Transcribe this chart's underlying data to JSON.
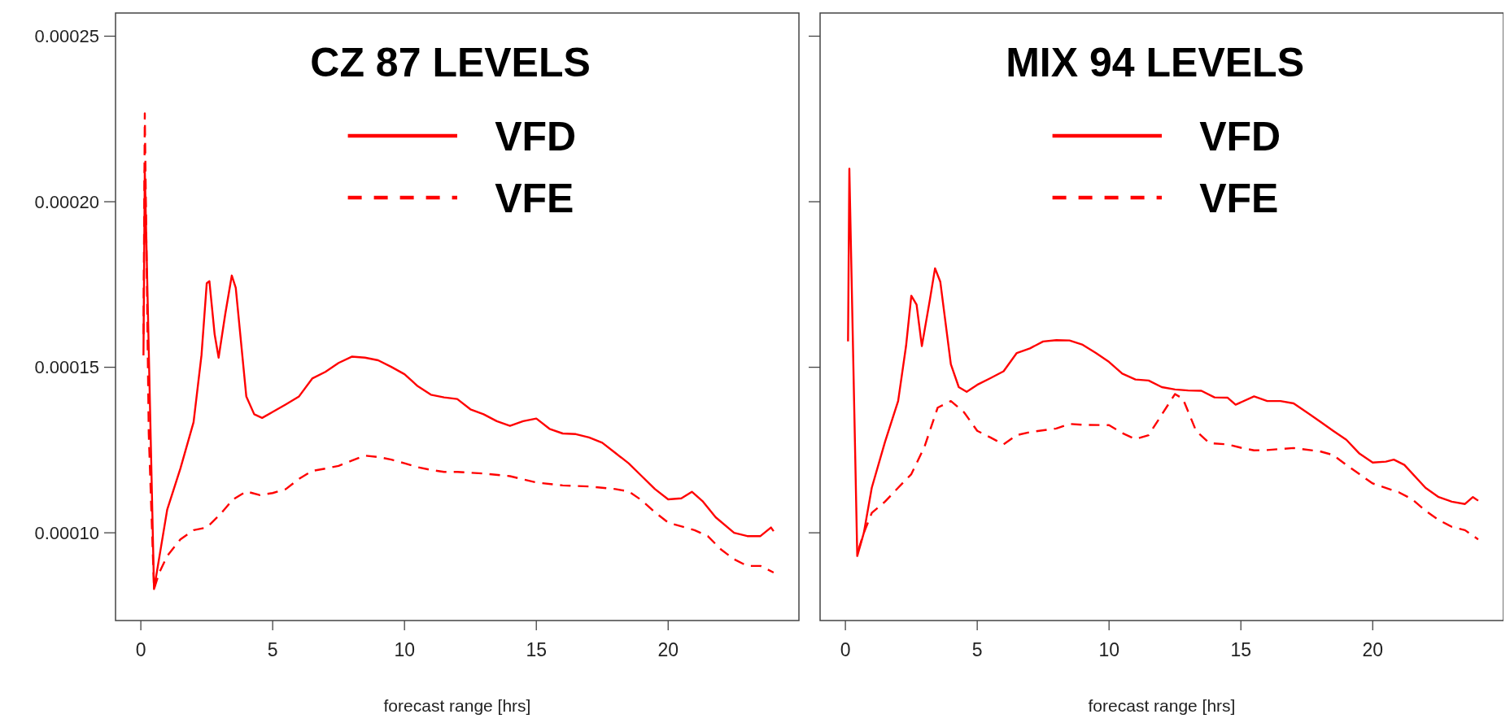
{
  "chart_data": [
    {
      "type": "line",
      "legend_title": "CZ 87 LEVELS",
      "xlabel": "forecast range [hrs]",
      "legend": "top",
      "xlim": [
        -0.96,
        24.96
      ],
      "ylim": [
        7.35e-05,
        0.000257
      ],
      "xticks": [
        0,
        5,
        10,
        15,
        20
      ],
      "yticks": [
        {
          "value": 0.0001,
          "label": "0.00010"
        },
        {
          "value": 0.00015,
          "label": "0.00015"
        },
        {
          "value": 0.0002,
          "label": "0.00020"
        },
        {
          "value": 0.00025,
          "label": "0.00025"
        }
      ],
      "series": [
        {
          "name": "VFD",
          "color": "#ff0000",
          "line_style": "solid",
          "x": [
            0.1,
            0.15,
            0.5,
            1,
            1.5,
            2,
            2.3,
            2.5,
            2.6,
            2.8,
            2.95,
            3.2,
            3.45,
            3.6,
            4,
            4.3,
            4.6,
            5,
            5.5,
            6,
            6.5,
            7,
            7.5,
            8,
            8.5,
            9,
            9.5,
            10,
            10.5,
            11,
            11.5,
            12,
            12.5,
            13,
            13.5,
            14,
            14.5,
            15,
            15.5,
            16,
            16.5,
            17,
            17.5,
            18,
            18.5,
            19,
            19.5,
            20,
            20.5,
            20.9,
            21.3,
            21.8,
            22.5,
            23,
            23.5,
            23.9,
            24
          ],
          "values": [
            0.0001536,
            0.0002096,
            8.3e-05,
            0.000107,
            0.0001194,
            0.0001334,
            0.0001536,
            0.0001754,
            0.000176,
            0.0001599,
            0.0001529,
            0.000166,
            0.0001777,
            0.000174,
            0.0001412,
            0.0001358,
            0.0001347,
            0.0001365,
            0.0001388,
            0.0001412,
            0.0001466,
            0.0001486,
            0.0001513,
            0.0001532,
            0.0001529,
            0.0001521,
            0.0001501,
            0.0001479,
            0.0001443,
            0.0001417,
            0.0001409,
            0.0001404,
            0.0001373,
            0.0001358,
            0.0001337,
            0.0001323,
            0.0001337,
            0.0001345,
            0.0001314,
            0.00013,
            0.0001298,
            0.0001288,
            0.0001272,
            0.0001241,
            0.000121,
            0.0001171,
            0.0001132,
            0.0001101,
            0.0001104,
            0.0001124,
            0.0001096,
            0.0001047,
            0.0001,
            9.9e-05,
            9.9e-05,
            0.0001016,
            0.0001005
          ]
        },
        {
          "name": "VFE",
          "color": "#ff0000",
          "line_style": "dashed",
          "x": [
            0.1,
            0.15,
            0.3,
            0.5,
            0.7,
            1,
            1.5,
            2,
            2.5,
            3,
            3.5,
            4,
            4.5,
            5,
            5.5,
            6,
            6.5,
            7,
            7.5,
            8,
            8.5,
            9,
            9.5,
            10,
            10.5,
            11,
            11.5,
            12,
            13,
            14,
            15,
            16,
            17,
            18,
            18.5,
            19,
            19.5,
            20,
            21,
            21.5,
            22,
            22.5,
            23,
            23.5,
            24
          ],
          "values": [
            0.00016,
            0.0002267,
            0.00013,
            8.3e-05,
            8.8e-05,
            9.3e-05,
            9.8e-05,
            0.0001008,
            0.0001016,
            0.0001055,
            0.0001101,
            0.0001125,
            0.0001114,
            0.000112,
            0.0001132,
            0.0001163,
            0.0001187,
            0.0001194,
            0.0001202,
            0.0001218,
            0.0001233,
            0.0001229,
            0.0001221,
            0.000121,
            0.0001198,
            0.000119,
            0.0001184,
            0.0001184,
            0.0001179,
            0.0001171,
            0.0001152,
            0.0001143,
            0.000114,
            0.0001132,
            0.0001125,
            0.0001098,
            0.0001062,
            0.0001031,
            0.0001008,
            9.9e-05,
            9.5e-05,
            9.2e-05,
            9e-05,
            9e-05,
            8.8e-05
          ]
        }
      ]
    },
    {
      "type": "line",
      "legend_title": "MIX 94 LEVELS",
      "xlabel": "forecast range [hrs]",
      "legend": "top",
      "tick_labels": "x",
      "xlim": [
        -0.96,
        24.96
      ],
      "ylim": [
        7.35e-05,
        0.000257
      ],
      "xticks": [
        0,
        5,
        10,
        15,
        20
      ],
      "yticks": [
        {
          "value": 0.0001,
          "label": null
        },
        {
          "value": 0.00015,
          "label": null
        },
        {
          "value": 0.0002,
          "label": null
        },
        {
          "value": 0.00025,
          "label": null
        }
      ],
      "series": [
        {
          "name": "VFD",
          "color": "#ff0000",
          "line_style": "solid",
          "x": [
            0.1,
            0.15,
            0.45,
            0.7,
            1,
            1.5,
            2,
            2.3,
            2.5,
            2.7,
            2.9,
            3.2,
            3.4,
            3.6,
            4,
            4.3,
            4.6,
            5,
            5.5,
            6,
            6.5,
            7,
            7.5,
            8,
            8.5,
            9,
            9.5,
            10,
            10.5,
            11,
            11.5,
            12,
            12.5,
            13,
            13.5,
            14,
            14.5,
            14.8,
            15.5,
            16,
            16.5,
            17,
            17.5,
            18,
            18.5,
            19,
            19.5,
            20,
            20.5,
            20.8,
            21.2,
            22,
            22.5,
            23,
            23.5,
            23.8,
            24
          ],
          "values": [
            0.0001578,
            0.00021,
            9.3e-05,
            0.0001,
            0.0001136,
            0.0001274,
            0.0001398,
            0.0001564,
            0.0001716,
            0.0001689,
            0.0001564,
            0.0001702,
            0.0001799,
            0.0001758,
            0.0001509,
            0.000144,
            0.0001426,
            0.0001447,
            0.0001467,
            0.0001488,
            0.0001543,
            0.0001557,
            0.0001578,
            0.0001582,
            0.0001581,
            0.0001568,
            0.0001543,
            0.0001516,
            0.0001481,
            0.0001463,
            0.000146,
            0.000144,
            0.0001433,
            0.000143,
            0.0001429,
            0.0001409,
            0.0001408,
            0.0001387,
            0.0001412,
            0.0001398,
            0.0001398,
            0.0001391,
            0.0001364,
            0.0001336,
            0.0001308,
            0.0001281,
            0.0001239,
            0.0001212,
            0.0001215,
            0.0001221,
            0.0001205,
            0.0001136,
            0.0001108,
            0.0001094,
            0.0001087,
            0.0001108,
            0.0001097
          ]
        },
        {
          "name": "VFE",
          "color": "#ff0000",
          "line_style": "dashed",
          "x": [
            0.5,
            0.7,
            1,
            1.5,
            2,
            2.5,
            3,
            3.5,
            4,
            4.5,
            5,
            5.5,
            6,
            6.5,
            7,
            8,
            8.5,
            9,
            10,
            10.5,
            11,
            11.5,
            12,
            12.5,
            12.8,
            13.3,
            13.8,
            14.5,
            15,
            15.5,
            16,
            17,
            18,
            18.5,
            19,
            19.5,
            20,
            21,
            21.5,
            22,
            22.5,
            23,
            23.5,
            24
          ],
          "values": [
            9.5e-05,
            0.0001,
            0.000106,
            0.0001094,
            0.0001136,
            0.0001177,
            0.000126,
            0.0001378,
            0.0001398,
            0.0001364,
            0.0001308,
            0.0001288,
            0.0001267,
            0.0001295,
            0.0001304,
            0.0001315,
            0.0001329,
            0.0001326,
            0.0001325,
            0.0001301,
            0.0001283,
            0.0001295,
            0.0001357,
            0.0001419,
            0.0001405,
            0.0001308,
            0.0001271,
            0.0001267,
            0.0001257,
            0.0001249,
            0.000125,
            0.0001256,
            0.0001246,
            0.0001235,
            0.0001205,
            0.0001177,
            0.0001149,
            0.0001122,
            0.0001101,
            0.0001067,
            0.0001039,
            0.0001018,
            0.0001008,
            9.8e-05
          ]
        }
      ]
    }
  ]
}
